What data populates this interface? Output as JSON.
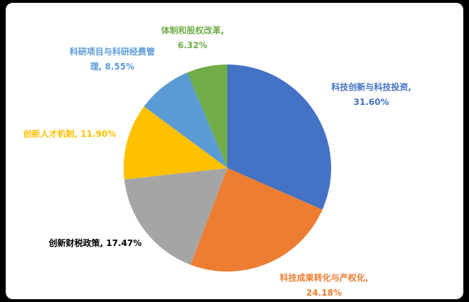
{
  "page": {
    "background_color": "#000000",
    "plot_area_color": "#FFFFFF"
  },
  "chart_data": {
    "type": "pie",
    "title": "",
    "legend": "none",
    "start_angle_deg": 0,
    "angle_reference": "12-oclock",
    "direction": "clockwise",
    "categories": [
      "科技创新与科技投资",
      "科技成果转化与产权化",
      "创新财税政策",
      "创新人才机制",
      "科研项目与科研经费管理",
      "体制和股权改革"
    ],
    "values": [
      31.6,
      24.18,
      17.47,
      11.9,
      8.55,
      6.32
    ],
    "segments": [
      {
        "label": "科技创新与科技投资",
        "value": 31.6,
        "pct_text": "31.60%",
        "color": "#4472C4",
        "label_color": "#4472C4",
        "lines": [
          "科技创新与科技投资,",
          "31.60%"
        ]
      },
      {
        "label": "科技成果转化与产权化",
        "value": 24.18,
        "pct_text": "24.18%",
        "color": "#ED7D31",
        "label_color": "#ED7D31",
        "lines": [
          "科技成果转化与产权化,",
          "24.18%"
        ]
      },
      {
        "label": "创新财税政策",
        "value": 17.47,
        "pct_text": "17.47%",
        "color": "#A5A5A5",
        "label_color": "#000000",
        "lines": [
          "创新财税政策, 17.47%"
        ]
      },
      {
        "label": "创新人才机制",
        "value": 11.9,
        "pct_text": "11.90%",
        "color": "#FFC000",
        "label_color": "#FFC000",
        "lines": [
          "创新人才机制, 11.90%"
        ]
      },
      {
        "label": "科研项目与科研经费管理",
        "value": 8.55,
        "pct_text": "8.55%",
        "color": "#5B9BD5",
        "label_color": "#5B9BD5",
        "lines": [
          "科研项目与科研经费管",
          "理, 8.55%"
        ]
      },
      {
        "label": "体制和股权改革",
        "value": 6.32,
        "pct_text": "6.32%",
        "color": "#70AD47",
        "label_color": "#70AD47",
        "lines": [
          "体制和股权改革,",
          "6.32%"
        ]
      }
    ]
  }
}
